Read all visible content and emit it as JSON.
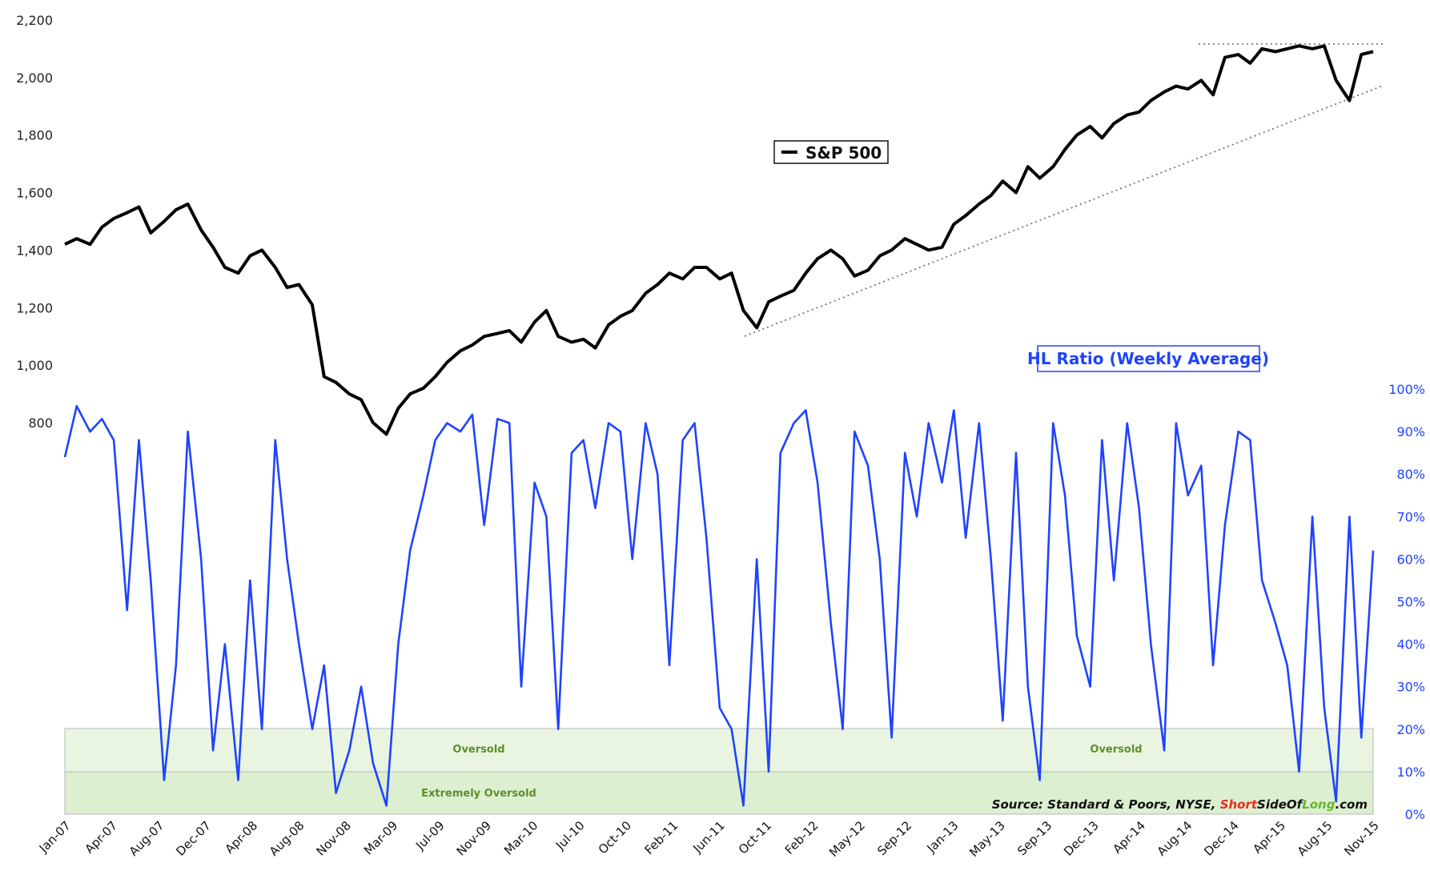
{
  "chart_data": {
    "type": "line",
    "title": "",
    "x_tick_labels": [
      "Jan-07",
      "Apr-07",
      "Aug-07",
      "Dec-07",
      "Apr-08",
      "Aug-08",
      "Nov-08",
      "Mar-09",
      "Jul-09",
      "Nov-09",
      "Mar-10",
      "Jul-10",
      "Oct-10",
      "Feb-11",
      "Jun-11",
      "Oct-11",
      "Feb-12",
      "May-12",
      "Sep-12",
      "Jan-13",
      "May-13",
      "Sep-13",
      "Dec-13",
      "Apr-14",
      "Aug-14",
      "Dec-14",
      "Apr-15",
      "Aug-15",
      "Nov-15"
    ],
    "left_axis": {
      "ticks": [
        "800",
        "1,000",
        "1,200",
        "1,400",
        "1,600",
        "1,800",
        "2,000",
        "2,200"
      ],
      "range": [
        800,
        2200
      ]
    },
    "right_axis": {
      "ticks": [
        "0%",
        "10%",
        "20%",
        "30%",
        "40%",
        "50%",
        "60%",
        "70%",
        "80%",
        "90%",
        "100%"
      ],
      "range": [
        0,
        100
      ]
    },
    "series": [
      {
        "name": "S&P 500",
        "color": "#000000",
        "axis": "left",
        "x": [
          2007.0,
          2007.08,
          2007.17,
          2007.25,
          2007.33,
          2007.42,
          2007.5,
          2007.58,
          2007.67,
          2007.75,
          2007.83,
          2007.92,
          2008.0,
          2008.08,
          2008.17,
          2008.25,
          2008.33,
          2008.42,
          2008.5,
          2008.58,
          2008.67,
          2008.75,
          2008.83,
          2008.92,
          2009.0,
          2009.08,
          2009.17,
          2009.25,
          2009.33,
          2009.42,
          2009.5,
          2009.58,
          2009.67,
          2009.75,
          2009.83,
          2009.92,
          2010.0,
          2010.08,
          2010.17,
          2010.25,
          2010.33,
          2010.42,
          2010.5,
          2010.58,
          2010.67,
          2010.75,
          2010.83,
          2010.92,
          2011.0,
          2011.08,
          2011.17,
          2011.25,
          2011.33,
          2011.42,
          2011.5,
          2011.58,
          2011.67,
          2011.75,
          2011.83,
          2011.92,
          2012.0,
          2012.08,
          2012.17,
          2012.25,
          2012.33,
          2012.42,
          2012.5,
          2012.58,
          2012.67,
          2012.75,
          2012.83,
          2012.92,
          2013.0,
          2013.08,
          2013.17,
          2013.25,
          2013.33,
          2013.42,
          2013.5,
          2013.58,
          2013.67,
          2013.75,
          2013.83,
          2013.92,
          2014.0,
          2014.08,
          2014.17,
          2014.25,
          2014.33,
          2014.42,
          2014.5,
          2014.58,
          2014.67,
          2014.75,
          2014.83,
          2014.92,
          2015.0,
          2015.08,
          2015.17,
          2015.25,
          2015.33,
          2015.42,
          2015.5,
          2015.58,
          2015.67,
          2015.75,
          2015.83
        ],
        "values": [
          1420,
          1440,
          1420,
          1480,
          1510,
          1530,
          1550,
          1460,
          1500,
          1540,
          1560,
          1470,
          1410,
          1340,
          1320,
          1380,
          1400,
          1340,
          1270,
          1280,
          1210,
          960,
          940,
          900,
          880,
          800,
          760,
          850,
          900,
          920,
          960,
          1010,
          1050,
          1070,
          1100,
          1110,
          1120,
          1080,
          1150,
          1190,
          1100,
          1080,
          1090,
          1060,
          1140,
          1170,
          1190,
          1250,
          1280,
          1320,
          1300,
          1340,
          1340,
          1300,
          1320,
          1190,
          1130,
          1220,
          1240,
          1260,
          1320,
          1370,
          1400,
          1370,
          1310,
          1330,
          1380,
          1400,
          1440,
          1420,
          1400,
          1410,
          1490,
          1520,
          1560,
          1590,
          1640,
          1600,
          1690,
          1650,
          1690,
          1750,
          1800,
          1830,
          1790,
          1840,
          1870,
          1880,
          1920,
          1950,
          1970,
          1960,
          1990,
          1940,
          2070,
          2080,
          2050,
          2100,
          2090,
          2100,
          2110,
          2100,
          2110,
          1990,
          1920,
          2080,
          2090
        ]
      },
      {
        "name": "HL Ratio (Weekly Average)",
        "color": "#1f43ff",
        "axis": "right",
        "x": [
          2007.0,
          2007.08,
          2007.17,
          2007.25,
          2007.33,
          2007.42,
          2007.5,
          2007.58,
          2007.67,
          2007.75,
          2007.83,
          2007.92,
          2008.0,
          2008.08,
          2008.17,
          2008.25,
          2008.33,
          2008.42,
          2008.5,
          2008.58,
          2008.67,
          2008.75,
          2008.83,
          2008.92,
          2009.0,
          2009.08,
          2009.17,
          2009.25,
          2009.33,
          2009.42,
          2009.5,
          2009.58,
          2009.67,
          2009.75,
          2009.83,
          2009.92,
          2010.0,
          2010.08,
          2010.17,
          2010.25,
          2010.33,
          2010.42,
          2010.5,
          2010.58,
          2010.67,
          2010.75,
          2010.83,
          2010.92,
          2011.0,
          2011.08,
          2011.17,
          2011.25,
          2011.33,
          2011.42,
          2011.5,
          2011.58,
          2011.67,
          2011.75,
          2011.83,
          2011.92,
          2012.0,
          2012.08,
          2012.17,
          2012.25,
          2012.33,
          2012.42,
          2012.5,
          2012.58,
          2012.67,
          2012.75,
          2012.83,
          2012.92,
          2013.0,
          2013.08,
          2013.17,
          2013.25,
          2013.33,
          2013.42,
          2013.5,
          2013.58,
          2013.67,
          2013.75,
          2013.83,
          2013.92,
          2014.0,
          2014.08,
          2014.17,
          2014.25,
          2014.33,
          2014.42,
          2014.5,
          2014.58,
          2014.67,
          2014.75,
          2014.83,
          2014.92,
          2015.0,
          2015.08,
          2015.17,
          2015.25,
          2015.33,
          2015.42,
          2015.5,
          2015.58,
          2015.67,
          2015.75,
          2015.83
        ],
        "values": [
          84,
          96,
          90,
          93,
          88,
          48,
          88,
          55,
          8,
          35,
          90,
          60,
          15,
          40,
          8,
          55,
          20,
          88,
          60,
          40,
          20,
          35,
          5,
          15,
          30,
          12,
          2,
          40,
          62,
          75,
          88,
          92,
          90,
          94,
          68,
          93,
          92,
          30,
          78,
          70,
          20,
          85,
          88,
          72,
          92,
          90,
          60,
          92,
          80,
          35,
          88,
          92,
          65,
          25,
          20,
          2,
          60,
          10,
          85,
          92,
          95,
          78,
          45,
          20,
          90,
          82,
          60,
          18,
          85,
          70,
          92,
          78,
          95,
          65,
          92,
          60,
          22,
          85,
          30,
          8,
          92,
          75,
          42,
          30,
          88,
          55,
          92,
          72,
          40,
          15,
          92,
          75,
          82,
          35,
          68,
          90,
          88,
          55,
          45,
          35,
          10,
          70,
          25,
          3,
          70,
          18,
          62
        ]
      }
    ],
    "bands": [
      {
        "label": "Oversold",
        "from": 10,
        "to": 20
      },
      {
        "label": "Extremely Oversold",
        "from": 0,
        "to": 10
      }
    ],
    "legend": [
      {
        "label": "S&P 500",
        "position": "center-top"
      },
      {
        "label": "HL Ratio (Weekly Average)",
        "position": "right-middle"
      }
    ],
    "source": {
      "prefix": "Source: Standard & Poors, NYSE, ",
      "brand_short": "Short",
      "brand_side": "SideOf",
      "brand_long": "Long",
      "suffix": ".com"
    },
    "band_labels": {
      "oversold_left": "Oversold",
      "oversold_right": "Oversold",
      "extremely": "Extremely Oversold"
    },
    "grid": false
  }
}
